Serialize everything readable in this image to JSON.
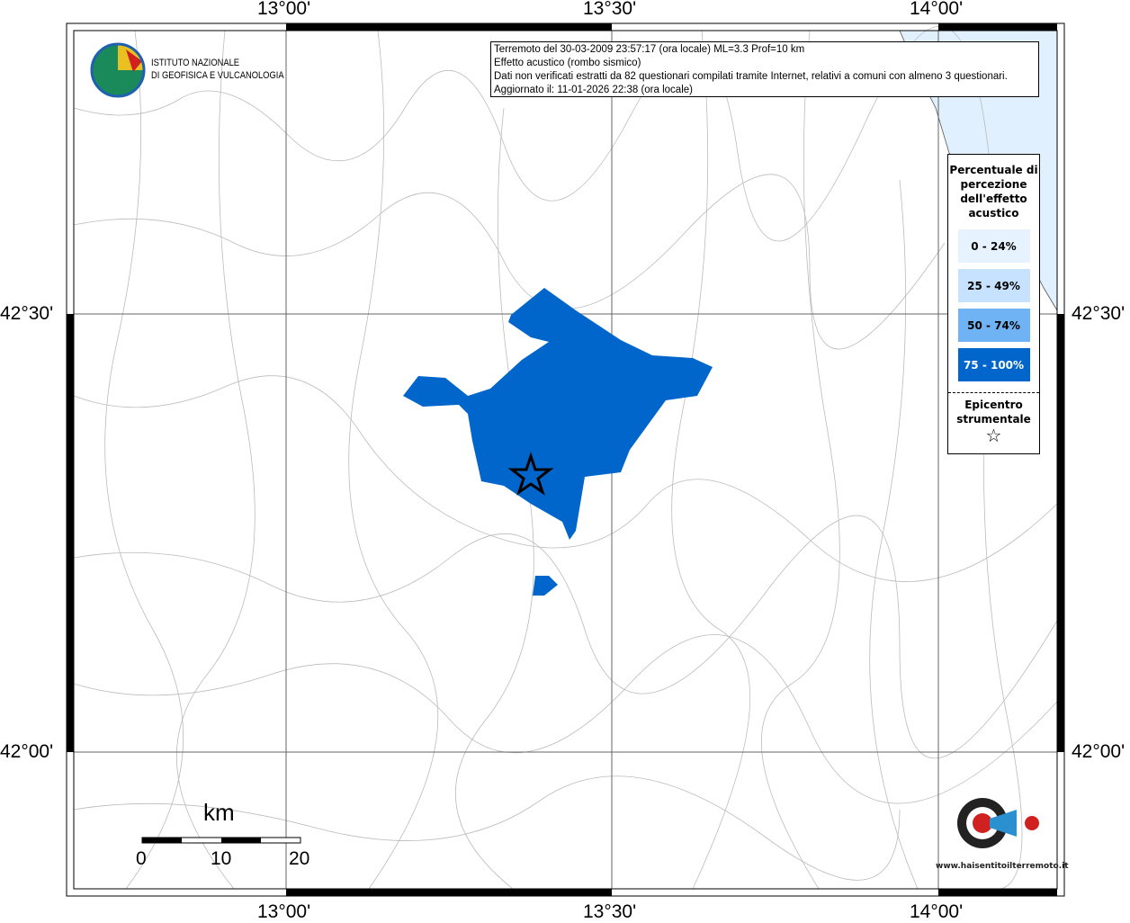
{
  "axes": {
    "top_labels": [
      "13°00'",
      "13°30'",
      "14°00'"
    ],
    "bottom_labels": [
      "13°00'",
      "13°30'",
      "14°00'"
    ],
    "left_labels": [
      "42°30'",
      "42°00'"
    ],
    "right_labels": [
      "42°30'",
      "42°00'"
    ]
  },
  "logo": {
    "line1": "ISTITUTO NAZIONALE",
    "line2": "DI GEOFISICA E VULCANOLOGIA"
  },
  "info": {
    "line1": "Terremoto del 30-03-2009 23:57:17 (ora locale) ML=3.3 Prof=10 km",
    "line2": "Effetto acustico (rombo sismico)",
    "line3": "Dati non verificati estratti da 82 questionari compilati tramite Internet, relativi a comuni con almeno 3 questionari.",
    "line4": "Aggiornato il: 11-01-2026 22:38 (ora locale)"
  },
  "legend": {
    "title": "Percentuale di percezione dell'effetto acustico",
    "classes": [
      {
        "label": "0 - 24%",
        "color": "#e6f3ff"
      },
      {
        "label": "25 - 49%",
        "color": "#c6e2ff"
      },
      {
        "label": "50 - 74%",
        "color": "#6fb3f5"
      },
      {
        "label": "75 - 100%",
        "color": "#0066cc"
      }
    ],
    "epicenter_label": "Epicentro strumentale",
    "epicenter_icon": "star-outline-icon"
  },
  "scale": {
    "unit": "km",
    "ticks": [
      "0",
      "10",
      "20"
    ]
  },
  "brand": {
    "text": "www.haisentitoilterremoto.it"
  },
  "colors": {
    "sea": "#e0f0ff",
    "felt": "#0066cc"
  }
}
